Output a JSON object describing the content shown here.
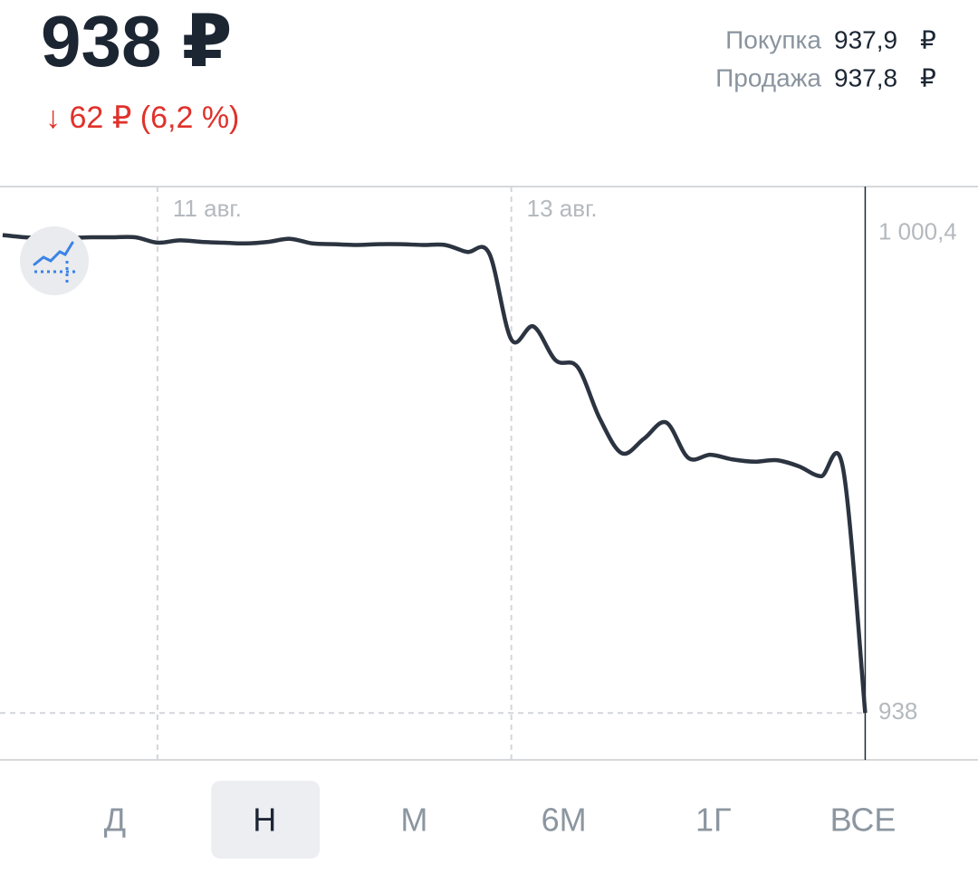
{
  "header": {
    "price": "938 ₽",
    "change": "↓ 62 ₽ (6,2 %)",
    "buy_label": "Покупка",
    "buy_value": "937,9",
    "buy_currency": "₽",
    "sell_label": "Продажа",
    "sell_value": "937,8",
    "sell_currency": "₽"
  },
  "chart_data": {
    "type": "line",
    "color": "#2b3440",
    "values": [
      1000.2,
      999.9,
      999.8,
      999.8,
      999.9,
      999.9,
      999.9,
      999.2,
      999.5,
      999.3,
      999.2,
      999.1,
      999.3,
      999.7,
      999.1,
      999.0,
      998.9,
      999.0,
      999.0,
      998.9,
      998.9,
      998.0,
      997.8,
      986.6,
      988.3,
      983.9,
      983.0,
      976.3,
      971.8,
      973.7,
      975.8,
      971.2,
      971.6,
      971.0,
      970.7,
      970.9,
      970.1,
      968.8,
      969.8,
      938.0
    ],
    "xlim": [
      -0.12,
      44.1
    ],
    "xticks": [
      {
        "value": 7,
        "label": "11 авг."
      },
      {
        "value": 23,
        "label": "13 авг."
      }
    ],
    "ylim": [
      931.9,
      1006.5
    ],
    "yticks": [
      {
        "value": 1000.4,
        "label": "1 000,4"
      },
      {
        "value": 938,
        "label": "938"
      }
    ],
    "grid": true
  },
  "periods": [
    "Д",
    "Н",
    "М",
    "6М",
    "1Г",
    "ВСЕ"
  ],
  "selected_period": 1
}
